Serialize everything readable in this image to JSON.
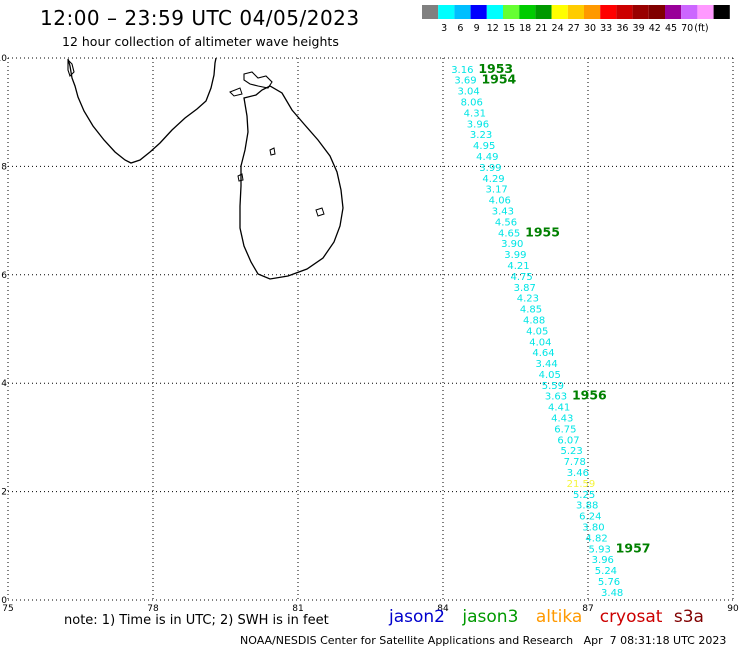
{
  "header": {
    "title": "12:00 – 23:59 UTC 04/05/2023",
    "subtitle": "12 hour collection of altimeter wave heights"
  },
  "color_scale": {
    "colors": [
      "#808080",
      "#00ffff",
      "#00bfff",
      "#0000ff",
      "#00ffff",
      "#66ff33",
      "#00cc00",
      "#009900",
      "#ffff00",
      "#ffcc00",
      "#ff9900",
      "#ff0000",
      "#cc0000",
      "#990000",
      "#800000",
      "#990099",
      "#cc66ff",
      "#ff99ff",
      "#000000"
    ],
    "ticks": [
      "3",
      "6",
      "9",
      "12",
      "15",
      "18",
      "21",
      "24",
      "27",
      "30",
      "33",
      "36",
      "39",
      "42",
      "45",
      "70"
    ],
    "unit": "(ft)"
  },
  "map": {
    "lon_range": [
      75,
      90
    ],
    "lat_range": [
      0,
      10
    ],
    "x_ticks": [
      "75",
      "78",
      "81",
      "84",
      "87",
      "90"
    ],
    "y_ticks": [
      "10",
      "8",
      "6",
      "4",
      "2",
      "0"
    ],
    "grid": "dotted",
    "land_color": "#000000"
  },
  "swh_track": [
    {
      "value": "3.16",
      "color": "#00e5e5"
    },
    {
      "value": "3.69",
      "color": "#00e5e5"
    },
    {
      "value": "3.04",
      "color": "#00e5e5"
    },
    {
      "value": "8.06",
      "color": "#00e5e5"
    },
    {
      "value": "4.31",
      "color": "#00e5e5"
    },
    {
      "value": "3.96",
      "color": "#00e5e5"
    },
    {
      "value": "3.23",
      "color": "#00e5e5"
    },
    {
      "value": "4.95",
      "color": "#00e5e5"
    },
    {
      "value": "4.49",
      "color": "#00e5e5"
    },
    {
      "value": "3.99",
      "color": "#00e5e5"
    },
    {
      "value": "4.29",
      "color": "#00e5e5"
    },
    {
      "value": "3.17",
      "color": "#00e5e5"
    },
    {
      "value": "4.06",
      "color": "#00e5e5"
    },
    {
      "value": "3.43",
      "color": "#00e5e5"
    },
    {
      "value": "4.56",
      "color": "#00e5e5"
    },
    {
      "value": "4.65",
      "color": "#00e5e5"
    },
    {
      "value": "3.90",
      "color": "#00e5e5"
    },
    {
      "value": "3.99",
      "color": "#00e5e5"
    },
    {
      "value": "4.21",
      "color": "#00e5e5"
    },
    {
      "value": "4.75",
      "color": "#00e5e5"
    },
    {
      "value": "3.87",
      "color": "#00e5e5"
    },
    {
      "value": "4.23",
      "color": "#00e5e5"
    },
    {
      "value": "4.85",
      "color": "#00e5e5"
    },
    {
      "value": "4.88",
      "color": "#00e5e5"
    },
    {
      "value": "4.05",
      "color": "#00e5e5"
    },
    {
      "value": "4.04",
      "color": "#00e5e5"
    },
    {
      "value": "4.64",
      "color": "#00e5e5"
    },
    {
      "value": "3.44",
      "color": "#00e5e5"
    },
    {
      "value": "4.05",
      "color": "#00e5e5"
    },
    {
      "value": "5.59",
      "color": "#00e5e5"
    },
    {
      "value": "3.63",
      "color": "#00e5e5"
    },
    {
      "value": "4.41",
      "color": "#00e5e5"
    },
    {
      "value": "4.43",
      "color": "#00e5e5"
    },
    {
      "value": "6.75",
      "color": "#00e5e5"
    },
    {
      "value": "6.07",
      "color": "#00e5e5"
    },
    {
      "value": "5.23",
      "color": "#00e5e5"
    },
    {
      "value": "7.78",
      "color": "#00e5e5"
    },
    {
      "value": "3.46",
      "color": "#00e5e5"
    },
    {
      "value": "21.59",
      "color": "#f5f53c"
    },
    {
      "value": "5.25",
      "color": "#00e5e5"
    },
    {
      "value": "3.88",
      "color": "#00e5e5"
    },
    {
      "value": "6.24",
      "color": "#00e5e5"
    },
    {
      "value": "3.80",
      "color": "#00e5e5"
    },
    {
      "value": "4.82",
      "color": "#00e5e5"
    },
    {
      "value": "5.93",
      "color": "#00e5e5"
    },
    {
      "value": "3.96",
      "color": "#00e5e5"
    },
    {
      "value": "5.24",
      "color": "#00e5e5"
    },
    {
      "value": "5.76",
      "color": "#00e5e5"
    },
    {
      "value": "3.48",
      "color": "#00e5e5"
    }
  ],
  "time_labels": [
    {
      "text": "1953",
      "index": 0
    },
    {
      "text": "1954",
      "index": 1
    },
    {
      "text": "1955",
      "index": 15
    },
    {
      "text": "1956",
      "index": 30
    },
    {
      "text": "1957",
      "index": 44
    }
  ],
  "time_label_color": "#008000",
  "notes": {
    "text": "note:  1) Time is in UTC;  2) SWH is in feet"
  },
  "satellites": [
    {
      "name": "jason2",
      "color": "#0000cc"
    },
    {
      "name": "jason3",
      "color": "#009900"
    },
    {
      "name": "altika",
      "color": "#ff9900"
    },
    {
      "name": "cryosat",
      "color": "#cc0000"
    },
    {
      "name": "s3a",
      "color": "#800000"
    }
  ],
  "footer": {
    "credit": "NOAA/NESDIS Center for Satellite Applications and Research",
    "timestamp": "Apr  7 08:31:18 UTC 2023"
  }
}
